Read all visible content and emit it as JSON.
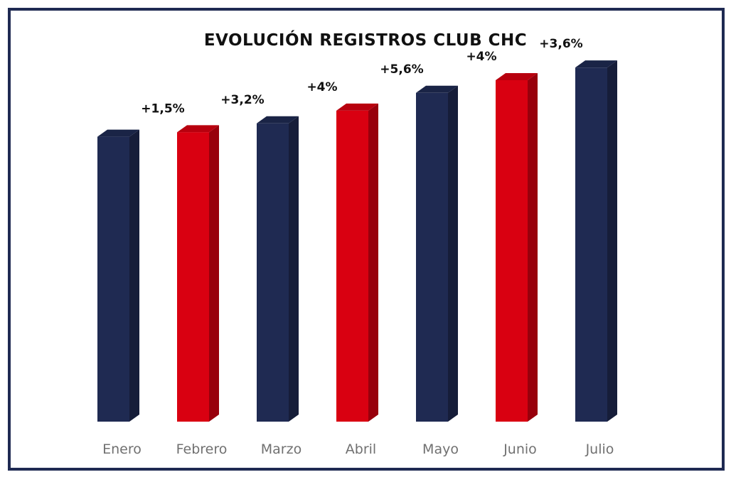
{
  "chart_data": {
    "type": "bar",
    "title": "EVOLUCIÓN REGISTROS CLUB CHC",
    "categories": [
      "Enero",
      "Febrero",
      "Marzo",
      "Abril",
      "Mayo",
      "Junio",
      "Julio"
    ],
    "values": [
      383,
      389,
      401,
      418,
      442,
      459,
      476
    ],
    "annotations": [
      "",
      "+1,5%",
      "+3,2%",
      "+4%",
      "+5,6%",
      "+4%",
      "+3,6%"
    ],
    "bar_colors": [
      "#1f2a52",
      "#d90011",
      "#1f2a52",
      "#d90011",
      "#1f2a52",
      "#d90011",
      "#1f2a52"
    ],
    "ylim": [
      0,
      500
    ],
    "grid": false,
    "style": "3d-column"
  }
}
